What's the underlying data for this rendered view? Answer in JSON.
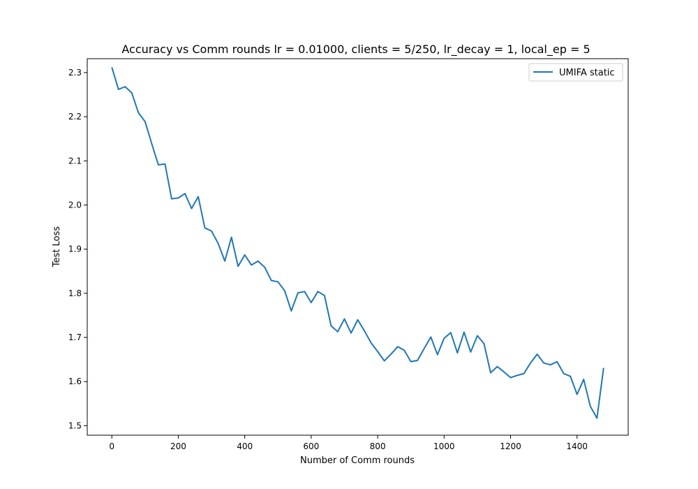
{
  "chart_data": {
    "type": "line",
    "title": "Accuracy vs Comm rounds lr = 0.01000, clients = 5/250, lr_decay = 1, local_ep = 5",
    "xlabel": "Number of Comm rounds",
    "ylabel": "Test Loss",
    "xlim": [
      -74,
      1554
    ],
    "ylim": [
      1.4785,
      2.3315
    ],
    "xticks": [
      0,
      200,
      400,
      600,
      800,
      1000,
      1200,
      1400
    ],
    "yticks": [
      1.5,
      1.6,
      1.7,
      1.8,
      1.9,
      2.0,
      2.1,
      2.2,
      2.3
    ],
    "ytick_labels": [
      "1.5",
      "1.6",
      "1.7",
      "1.8",
      "1.9",
      "2.0",
      "2.1",
      "2.2",
      "2.3"
    ],
    "grid": false,
    "legend_position": "top-right",
    "series": [
      {
        "name": "UMIFA static",
        "color": "#1f77b4",
        "x": [
          0,
          20,
          40,
          60,
          80,
          100,
          120,
          140,
          160,
          180,
          200,
          220,
          240,
          260,
          280,
          300,
          320,
          340,
          360,
          380,
          400,
          420,
          440,
          460,
          480,
          500,
          520,
          540,
          560,
          580,
          600,
          620,
          640,
          660,
          680,
          700,
          720,
          740,
          760,
          780,
          800,
          820,
          840,
          860,
          880,
          900,
          920,
          940,
          960,
          980,
          1000,
          1020,
          1040,
          1060,
          1080,
          1100,
          1120,
          1140,
          1160,
          1180,
          1200,
          1220,
          1240,
          1260,
          1280,
          1300,
          1320,
          1340,
          1360,
          1380,
          1400,
          1420,
          1440,
          1460,
          1480
        ],
        "y": [
          2.312,
          2.262,
          2.268,
          2.254,
          2.209,
          2.189,
          2.139,
          2.091,
          2.093,
          2.014,
          2.016,
          2.026,
          1.992,
          2.019,
          1.948,
          1.941,
          1.913,
          1.873,
          1.927,
          1.861,
          1.887,
          1.864,
          1.873,
          1.859,
          1.829,
          1.826,
          1.806,
          1.76,
          1.801,
          1.804,
          1.779,
          1.804,
          1.795,
          1.726,
          1.713,
          1.742,
          1.71,
          1.74,
          1.715,
          1.688,
          1.668,
          1.647,
          1.662,
          1.679,
          1.671,
          1.645,
          1.648,
          1.675,
          1.701,
          1.661,
          1.698,
          1.711,
          1.665,
          1.712,
          1.667,
          1.704,
          1.686,
          1.62,
          1.634,
          1.622,
          1.609,
          1.614,
          1.618,
          1.642,
          1.662,
          1.642,
          1.638,
          1.645,
          1.618,
          1.612,
          1.571,
          1.605,
          1.544,
          1.517,
          1.631
        ]
      }
    ]
  }
}
